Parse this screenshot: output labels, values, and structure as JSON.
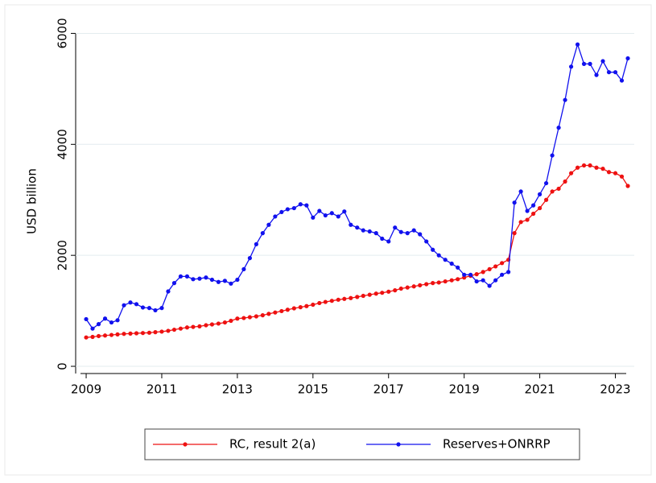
{
  "chart_data": {
    "type": "line",
    "y_label": "USD billion",
    "x": [
      2009,
      2009.17,
      2009.33,
      2009.5,
      2009.67,
      2009.83,
      2010,
      2010.17,
      2010.33,
      2010.5,
      2010.67,
      2010.83,
      2011,
      2011.17,
      2011.33,
      2011.5,
      2011.67,
      2011.83,
      2012,
      2012.17,
      2012.33,
      2012.5,
      2012.67,
      2012.83,
      2013,
      2013.17,
      2013.33,
      2013.5,
      2013.67,
      2013.83,
      2014,
      2014.17,
      2014.33,
      2014.5,
      2014.67,
      2014.83,
      2015,
      2015.17,
      2015.33,
      2015.5,
      2015.67,
      2015.83,
      2016,
      2016.17,
      2016.33,
      2016.5,
      2016.67,
      2016.83,
      2017,
      2017.17,
      2017.33,
      2017.5,
      2017.67,
      2017.83,
      2018,
      2018.17,
      2018.33,
      2018.5,
      2018.67,
      2018.83,
      2019,
      2019.17,
      2019.33,
      2019.5,
      2019.67,
      2019.83,
      2020,
      2020.17,
      2020.33,
      2020.5,
      2020.67,
      2020.83,
      2021,
      2021.17,
      2021.33,
      2021.5,
      2021.67,
      2021.83,
      2022,
      2022.17,
      2022.33,
      2022.5,
      2022.67,
      2022.83,
      2023,
      2023.17,
      2023.33
    ],
    "series": [
      {
        "name": "RC, result 2(a)",
        "color": "#ee1111",
        "values": [
          520,
          530,
          545,
          555,
          565,
          575,
          585,
          590,
          595,
          600,
          605,
          615,
          625,
          640,
          660,
          680,
          700,
          710,
          720,
          740,
          755,
          770,
          790,
          820,
          860,
          870,
          885,
          900,
          920,
          945,
          970,
          995,
          1020,
          1045,
          1065,
          1085,
          1110,
          1140,
          1160,
          1180,
          1200,
          1215,
          1230,
          1250,
          1270,
          1290,
          1310,
          1325,
          1345,
          1370,
          1400,
          1420,
          1440,
          1460,
          1480,
          1500,
          1510,
          1530,
          1550,
          1570,
          1600,
          1630,
          1660,
          1700,
          1750,
          1800,
          1860,
          1920,
          2400,
          2600,
          2640,
          2750,
          2850,
          3000,
          3150,
          3200,
          3330,
          3480,
          3580,
          3620,
          3620,
          3580,
          3560,
          3500,
          3480,
          3420,
          3250
        ]
      },
      {
        "name": "Reserves+ONRRP",
        "color": "#1111ee",
        "values": [
          850,
          680,
          760,
          860,
          790,
          830,
          1100,
          1150,
          1120,
          1060,
          1050,
          1010,
          1050,
          1350,
          1500,
          1620,
          1620,
          1570,
          1580,
          1600,
          1560,
          1520,
          1540,
          1490,
          1560,
          1750,
          1950,
          2200,
          2400,
          2550,
          2700,
          2780,
          2830,
          2850,
          2920,
          2900,
          2680,
          2800,
          2720,
          2760,
          2700,
          2790,
          2550,
          2500,
          2450,
          2430,
          2400,
          2300,
          2250,
          2500,
          2420,
          2400,
          2450,
          2380,
          2250,
          2100,
          2000,
          1920,
          1850,
          1780,
          1650,
          1650,
          1530,
          1550,
          1450,
          1550,
          1650,
          1700,
          2950,
          3150,
          2800,
          2900,
          3100,
          3300,
          3800,
          4300,
          4800,
          5400,
          5800,
          5450,
          5450,
          5250,
          5500,
          5300,
          5300,
          5150,
          5550
        ]
      }
    ],
    "xlim": [
      2008.85,
      2023.5
    ],
    "ylim": [
      -130,
      6050
    ],
    "xticks": [
      2009,
      2011,
      2013,
      2015,
      2017,
      2019,
      2021,
      2023
    ],
    "yticks": [
      0,
      2000,
      4000,
      6000
    ],
    "grid": true,
    "legend": "bottom"
  }
}
